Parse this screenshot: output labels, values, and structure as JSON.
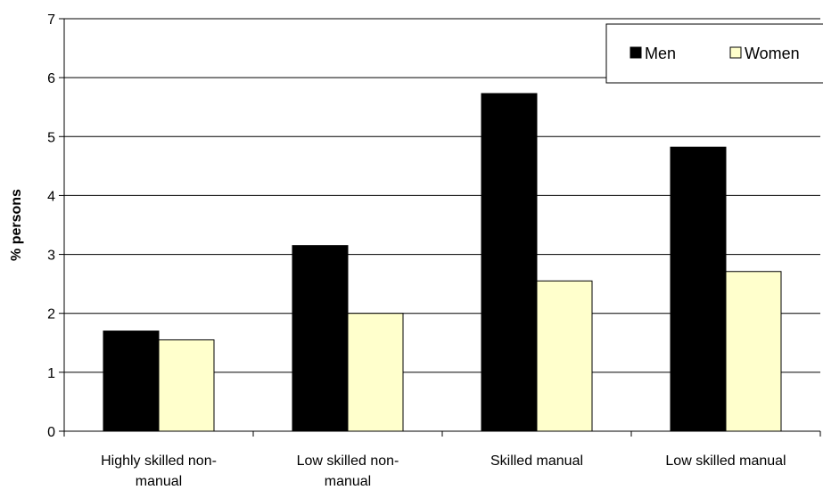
{
  "chart_data": {
    "type": "bar",
    "title": "",
    "xlabel": "",
    "ylabel": "% persons",
    "ylim": [
      0,
      7
    ],
    "yticks": [
      0,
      1,
      2,
      3,
      4,
      5,
      6,
      7
    ],
    "grid": true,
    "legend_position": "top-right",
    "categories": [
      [
        "Highly skilled non-",
        "manual"
      ],
      [
        "Low skilled non-",
        "manual"
      ],
      [
        "Skilled manual"
      ],
      [
        "Low skilled manual"
      ]
    ],
    "series": [
      {
        "name": "Men",
        "color": "#000000",
        "values": [
          1.7,
          3.15,
          5.73,
          4.82
        ]
      },
      {
        "name": "Women",
        "color": "#FFFFCC",
        "values": [
          1.55,
          2.0,
          2.55,
          2.71
        ]
      }
    ]
  }
}
